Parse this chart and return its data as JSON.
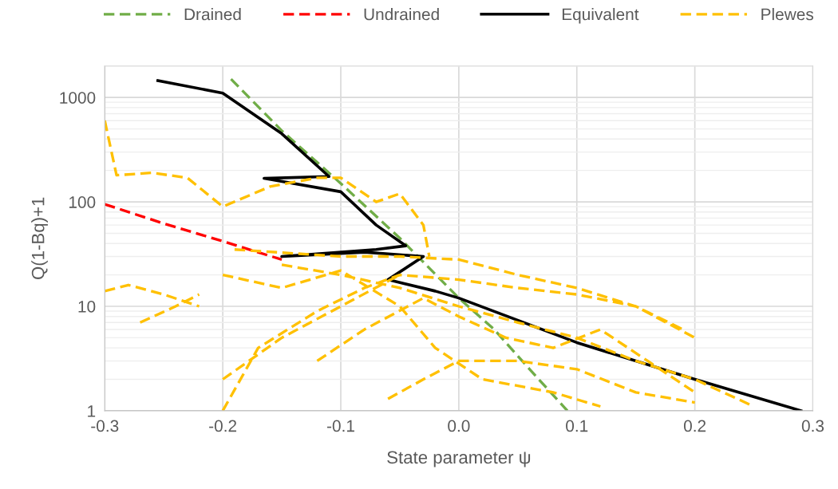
{
  "chart_data": {
    "type": "line",
    "xlabel": "State parameter ψ",
    "ylabel": "Q(1-Bq)+1",
    "xlim": [
      -0.3,
      0.3
    ],
    "xticks": [
      -0.3,
      -0.2,
      -0.1,
      {
        "value": 0,
        "label": "0.0"
      },
      0.1,
      0.2,
      0.3
    ],
    "ylim": [
      1,
      2000
    ],
    "yticks": [
      1,
      10,
      100,
      1000
    ],
    "log": true,
    "grid": true,
    "legend": "top",
    "series": [
      {
        "name": "Drained",
        "color": "#70ad47",
        "line_style": "dashed",
        "x": [
          -0.193,
          -0.15,
          -0.1,
          -0.05,
          0.0,
          0.03,
          0.06,
          0.092
        ],
        "values": [
          1500,
          480,
          150,
          45,
          12,
          6,
          2.5,
          1
        ]
      },
      {
        "name": "Undrained",
        "color": "#ff0000",
        "line_style": "dashed",
        "x": [
          -0.3,
          -0.25,
          -0.2,
          -0.15
        ],
        "values": [
          95,
          62,
          42,
          28
        ]
      },
      {
        "name": "Equivalent",
        "color": "#000000",
        "line_style": "solid",
        "x": [
          -0.255,
          -0.2,
          -0.15,
          -0.11,
          -0.165,
          -0.1,
          -0.07,
          -0.045,
          -0.07,
          -0.15,
          -0.08,
          -0.03,
          -0.06,
          -0.02,
          0.0,
          0.1,
          0.2,
          0.29
        ],
        "values": [
          1450,
          1100,
          450,
          175,
          168,
          125,
          60,
          38,
          35,
          30,
          33,
          30,
          18,
          14,
          12,
          4.5,
          2,
          1
        ]
      },
      {
        "name": "Plewes",
        "color": "#ffc000",
        "line_style": "dashed",
        "x": [
          -0.3,
          -0.29,
          -0.26,
          -0.23,
          -0.2,
          -0.16,
          -0.12,
          -0.1,
          -0.07,
          -0.05,
          -0.03,
          -0.025,
          null,
          -0.3,
          -0.28,
          -0.25,
          -0.22,
          null,
          -0.27,
          -0.24,
          -0.22,
          null,
          -0.2,
          -0.17,
          -0.12,
          -0.08,
          -0.05,
          0.0,
          0.05,
          0.1,
          0.15,
          0.19,
          null,
          -0.2,
          -0.15,
          -0.1,
          -0.05,
          null,
          -0.19,
          -0.1,
          -0.05,
          0.0,
          0.05,
          0.1,
          0.15,
          0.2,
          null,
          -0.15,
          -0.1,
          -0.05,
          0.0,
          0.05,
          0.1,
          0.15,
          0.2,
          0.25,
          null,
          -0.06,
          -0.03,
          0.0,
          0.05,
          0.1,
          0.15,
          0.2,
          null,
          -0.12,
          -0.08,
          -0.03,
          0.0,
          0.04,
          0.08,
          0.12,
          0.16,
          0.2,
          null,
          -0.2,
          -0.15,
          -0.1,
          -0.05,
          -0.02,
          0.02,
          0.08,
          0.12
        ],
        "values": [
          600,
          180,
          190,
          170,
          90,
          140,
          170,
          170,
          100,
          120,
          60,
          30,
          null,
          14,
          16,
          13,
          10,
          null,
          7,
          10,
          13,
          null,
          1,
          4,
          9,
          15,
          20,
          18,
          15,
          13,
          10,
          6,
          null,
          2,
          5,
          10,
          20,
          null,
          35,
          30,
          30,
          28,
          20,
          15,
          10,
          5,
          null,
          25,
          20,
          15,
          10,
          7,
          5,
          3,
          2,
          1.1,
          null,
          1.3,
          2,
          3,
          3,
          2.5,
          1.5,
          1.2,
          null,
          3,
          6,
          12,
          8,
          5,
          4,
          6,
          3,
          1.5,
          null,
          20,
          15,
          22,
          10,
          4,
          2,
          1.5,
          1.1
        ]
      }
    ]
  }
}
